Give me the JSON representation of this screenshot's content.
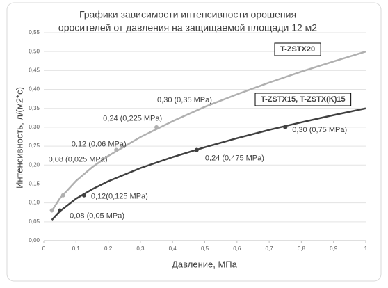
{
  "chart_data": {
    "type": "line",
    "title": [
      "Графики зависимости интенсивности орошения",
      "оросителей от давления на защищаемой площади 12 м2"
    ],
    "x_label": "Давление, МПа",
    "y_label": "Интенсивность, л/(м2*с)",
    "xlim": [
      0,
      1
    ],
    "ylim": [
      0,
      0.55
    ],
    "xticks": [
      0,
      {
        "value": 0.1,
        "label": "0,1"
      },
      {
        "value": 0.2,
        "label": "0,2"
      },
      {
        "value": 0.3,
        "label": "0,3"
      },
      {
        "value": 0.4,
        "label": "0,4"
      },
      {
        "value": 0.5,
        "label": "0,5"
      },
      {
        "value": 0.6,
        "label": "0,6"
      },
      {
        "value": 0.7,
        "label": "0,7"
      },
      {
        "value": 0.8,
        "label": "0,8"
      },
      {
        "value": 0.9,
        "label": "0,9"
      },
      1
    ],
    "yticks": [
      {
        "value": 0,
        "label": "0,00"
      },
      {
        "value": 0.05,
        "label": "0,05"
      },
      {
        "value": 0.1,
        "label": "0,10"
      },
      {
        "value": 0.15,
        "label": "0,15"
      },
      {
        "value": 0.2,
        "label": "0,20"
      },
      {
        "value": 0.25,
        "label": "0,25"
      },
      {
        "value": 0.3,
        "label": "0,30"
      },
      {
        "value": 0.35,
        "label": "0,35"
      },
      {
        "value": 0.4,
        "label": "0,40"
      },
      {
        "value": 0.45,
        "label": "0,45"
      },
      {
        "value": 0.5,
        "label": "0,50"
      },
      {
        "value": 0.55,
        "label": "0,55"
      }
    ],
    "grid": true,
    "series": [
      {
        "name": "T-ZSTX20",
        "color": "#b0b0b0",
        "x": [
          0.025,
          0.05,
          0.1,
          0.15,
          0.2,
          0.3,
          0.4,
          0.5,
          0.6,
          0.7,
          0.8,
          0.9,
          1
        ],
        "values": [
          0.079,
          0.112,
          0.158,
          0.194,
          0.224,
          0.274,
          0.316,
          0.354,
          0.387,
          0.418,
          0.447,
          0.474,
          0.5
        ],
        "markers": {
          "x": [
            0.025,
            0.06,
            0.225,
            0.35
          ],
          "values": [
            0.08,
            0.12,
            0.24,
            0.3
          ],
          "labels": [
            "0,08 (0,025 MPa)",
            "0,12 (0,06 MPa)",
            "0,24 (0,225 MPa)",
            "0,30 (0,35 MPa)"
          ]
        }
      },
      {
        "name": "T-ZSTX15, T-ZSTX(K)15",
        "color": "#404040",
        "x": [
          0.025,
          0.05,
          0.1,
          0.15,
          0.2,
          0.3,
          0.4,
          0.5,
          0.6,
          0.7,
          0.8,
          0.9,
          1
        ],
        "values": [
          0.055,
          0.078,
          0.111,
          0.136,
          0.157,
          0.192,
          0.221,
          0.247,
          0.271,
          0.293,
          0.313,
          0.332,
          0.35
        ],
        "markers": {
          "x": [
            0.05,
            0.125,
            0.475,
            0.75
          ],
          "values": [
            0.08,
            0.12,
            0.24,
            0.3
          ],
          "labels": [
            "0,08 (0,05 MPa)",
            "0,12(0,125 MPa)",
            "0,24 (0,475 MPa)",
            "0,30 (0,75 MPa)"
          ]
        }
      }
    ]
  }
}
